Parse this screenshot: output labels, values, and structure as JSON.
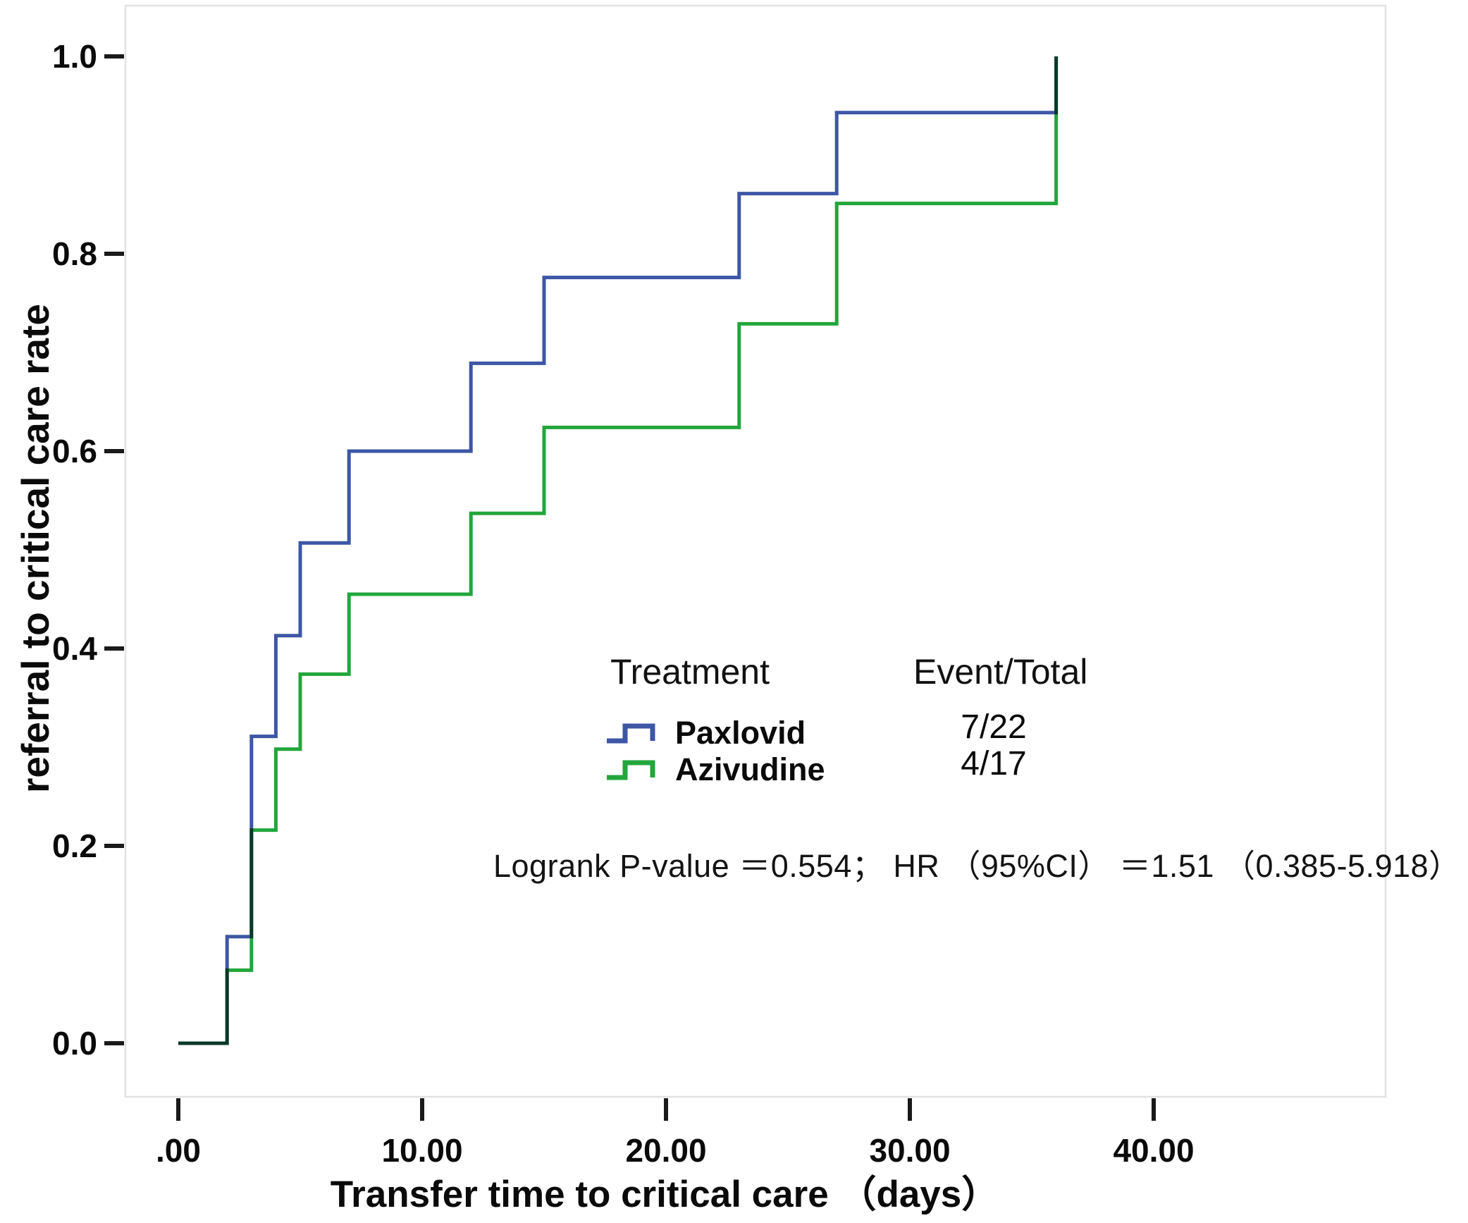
{
  "figure": {
    "kind": "kaplan-meier cumulative incidence step chart",
    "background": "#ffffff"
  },
  "chart_data": {
    "type": "line",
    "subtype": "step-post",
    "title": "",
    "xlabel": "Transfer time to critical care （days）",
    "ylabel": "referral to critical care rate",
    "xlim": [
      -2.2,
      43.5
    ],
    "ylim": [
      -0.055,
      1.05
    ],
    "grid": false,
    "frame_color": "#e2e2e2",
    "tick_color": "#1a1a1a",
    "x_ticks": {
      "values": [
        0,
        10,
        20,
        30,
        40
      ],
      "labels": [
        ".00",
        "10.00",
        "20.00",
        "30.00",
        "40.00"
      ]
    },
    "y_ticks": {
      "values": [
        0.0,
        0.2,
        0.4,
        0.6,
        0.8,
        1.0
      ],
      "labels": [
        "0.0",
        "0.2",
        "0.4",
        "0.6",
        "0.8",
        "1.0"
      ]
    },
    "series": [
      {
        "name": "Paxlovid",
        "color": "#3d56a6",
        "event_total": "7/22",
        "x": [
          0,
          2,
          3,
          4,
          5,
          7,
          12,
          15,
          23,
          27,
          36
        ],
        "y": [
          0.0,
          0.108,
          0.311,
          0.413,
          0.507,
          0.6,
          0.689,
          0.776,
          0.861,
          0.943,
          1.0
        ]
      },
      {
        "name": "Azivudine",
        "color": "#22a63c",
        "event_total": "4/17",
        "x": [
          0,
          2,
          3,
          4,
          5,
          7,
          12,
          15,
          23,
          27,
          36
        ],
        "y": [
          0.0,
          0.074,
          0.216,
          0.298,
          0.374,
          0.455,
          0.537,
          0.624,
          0.729,
          0.851,
          1.0
        ]
      }
    ],
    "legend": {
      "position": "center-right-inside",
      "title": "Treatment",
      "header": "Event/Total"
    },
    "annotation": "Logrank P-value ＝0.554； HR （95%CI） ＝1.51 （0.385-5.918）"
  }
}
